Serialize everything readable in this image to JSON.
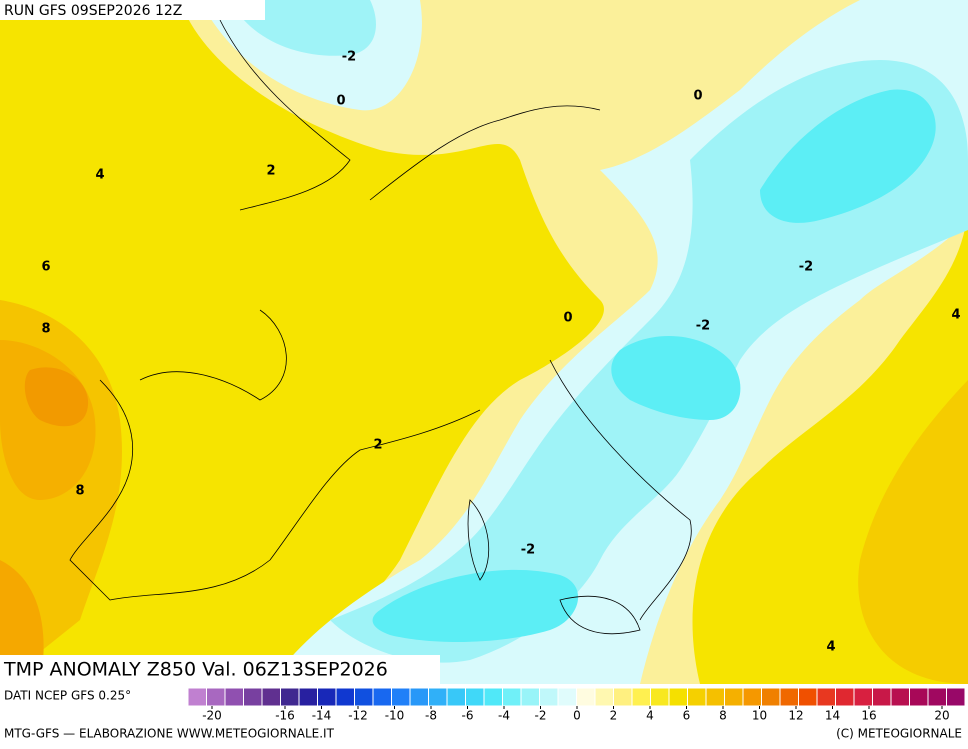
{
  "header": "RUN GFS 09SEP2026 12Z",
  "title": "TMP ANOMALY Z850 Val. 06Z13SEP2026",
  "source": "DATI NCEP GFS 0.25°",
  "footer_left": "MTG-GFS — ELABORAZIONE WWW.METEOGIORNALE.IT",
  "footer_right": "(C) METEOGIORNALE",
  "contour_labels": [
    -2,
    0,
    0,
    2,
    4,
    6,
    8,
    8,
    -2,
    -2,
    0,
    4,
    2,
    -2,
    4
  ],
  "colorbar": {
    "colors": [
      "#c080d0",
      "#a868c0",
      "#9050b0",
      "#7840a0",
      "#603090",
      "#402890",
      "#2820a0",
      "#1828b8",
      "#1038d0",
      "#1050e0",
      "#1868f0",
      "#2080f8",
      "#2898f8",
      "#30b0f8",
      "#38c8f8",
      "#40d8f8",
      "#50e8f8",
      "#70f0f8",
      "#98f4f8",
      "#c0f8fa",
      "#e0fcfc",
      "#fffce0",
      "#fff8b0",
      "#fff080",
      "#fff050",
      "#f8e820",
      "#f5e000",
      "#f5d000",
      "#f5c000",
      "#f5b000",
      "#f59800",
      "#f08000",
      "#f06800",
      "#f05000",
      "#e83820",
      "#e02830",
      "#d82040",
      "#c81848",
      "#b81050",
      "#a80858",
      "#a00860",
      "#980868"
    ],
    "ticks": [
      -20,
      -16,
      -14,
      -12,
      -10,
      -8,
      -6,
      -4,
      -2,
      0,
      2,
      4,
      6,
      8,
      10,
      12,
      14,
      16,
      20
    ]
  }
}
